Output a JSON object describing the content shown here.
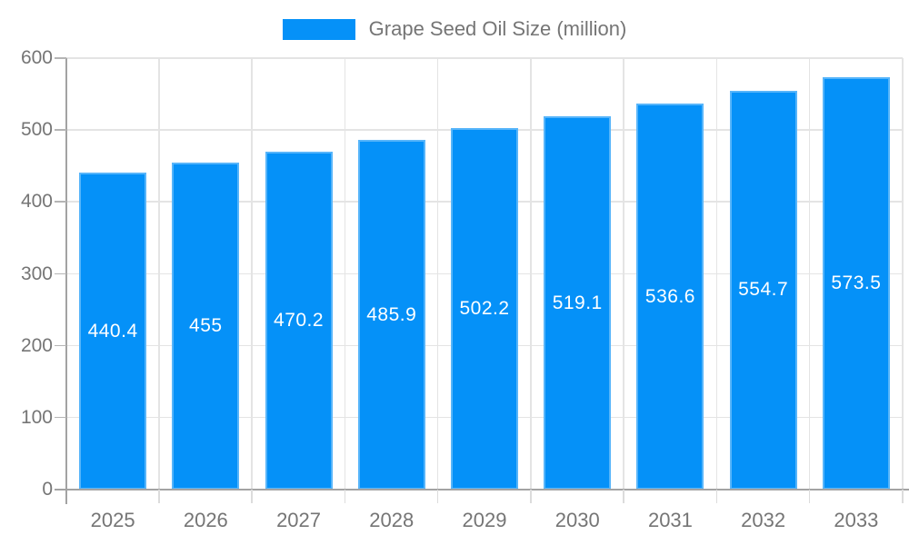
{
  "legend": {
    "label": "Grape Seed Oil Size (million)"
  },
  "colors": {
    "bar": "#0591f8",
    "grid": "#e4e4e4",
    "axis_line": "#a3a3a3",
    "tick_y": "#b5b5b5",
    "tick_x": "#dcdcdc",
    "axis_label": "#757575",
    "value_label": "#ffffff",
    "background": "#ffffff"
  },
  "chart_data": {
    "type": "bar",
    "title": "",
    "categories": [
      "2025",
      "2026",
      "2027",
      "2028",
      "2029",
      "2030",
      "2031",
      "2032",
      "2033"
    ],
    "series": [
      {
        "name": "Grape Seed Oil Size (million)",
        "values": [
          440.4,
          455,
          470.2,
          485.9,
          502.2,
          519.1,
          536.6,
          554.7,
          573.5
        ]
      }
    ],
    "value_labels": [
      "440.4",
      "455",
      "470.2",
      "485.9",
      "502.2",
      "519.1",
      "536.6",
      "554.7",
      "573.5"
    ],
    "xlabel": "",
    "ylabel": "",
    "ylim": [
      0,
      600
    ],
    "ytick_step": 100,
    "ytick_labels": [
      "0",
      "100",
      "200",
      "300",
      "400",
      "500",
      "600"
    ],
    "grid": true,
    "legend_position": "top-center"
  }
}
